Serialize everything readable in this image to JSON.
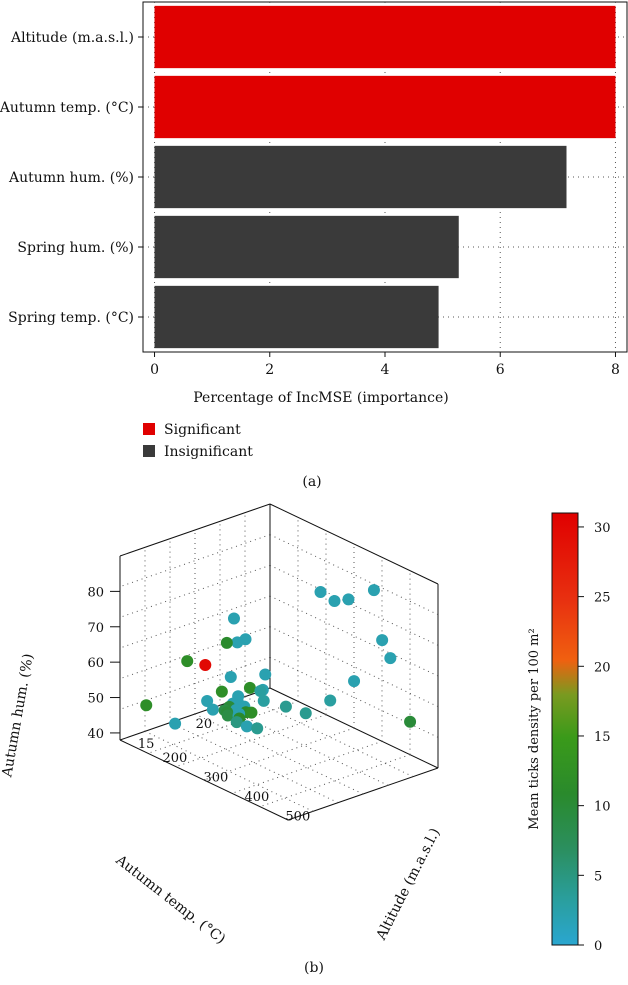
{
  "chart_data": [
    {
      "panel": "a",
      "type": "bar",
      "orientation": "horizontal",
      "categories": [
        "Altitude (m.a.s.l.)",
        "Autumn temp. (°C)",
        "Autumn hum. (%)",
        "Spring hum. (%)",
        "Spring temp. (°C)"
      ],
      "values": [
        8.0,
        8.0,
        7.15,
        5.28,
        4.93
      ],
      "significance": [
        "Significant",
        "Significant",
        "Insignificant",
        "Insignificant",
        "Insignificant"
      ],
      "xlabel": "Percentage of IncMSE (importance)",
      "ylabel": "",
      "xlim": [
        -0.2,
        8.2
      ],
      "xticks": [
        0,
        2,
        4,
        6,
        8
      ],
      "grid": "dotted",
      "legend": [
        {
          "label": "Significant",
          "color": "#e00000"
        },
        {
          "label": "Insignificant",
          "color": "#3a3a3a"
        }
      ],
      "legend_position": "bottom-left",
      "caption": "(a)"
    },
    {
      "panel": "b",
      "type": "scatter3d",
      "axes": {
        "x": {
          "label": "Autumn temp. (°C)",
          "ticks": [
            "15",
            "20"
          ],
          "range": [
            11,
            24
          ]
        },
        "y": {
          "label": "Altitude (m.a.s.l.)",
          "ticks": [
            "200",
            "300",
            "400",
            "500"
          ],
          "range": [
            150,
            560
          ]
        },
        "z": {
          "label": "Autumn hum. (%)",
          "ticks": [
            "40",
            "50",
            "60",
            "70",
            "80"
          ],
          "range": [
            38,
            90
          ]
        }
      },
      "colorbar": {
        "label": "Mean ticks density per 100 m²",
        "ticks": [
          "0",
          "5",
          "10",
          "15",
          "20",
          "25",
          "30"
        ],
        "range": [
          0,
          31
        ]
      },
      "points": [
        {
          "x": 12,
          "y": 400,
          "z": 85,
          "density": 2
        },
        {
          "x": 13,
          "y": 400,
          "z": 78,
          "density": 2
        },
        {
          "x": 13,
          "y": 380,
          "z": 76,
          "density": 2
        },
        {
          "x": 12.8,
          "y": 360,
          "z": 75,
          "density": 11
        },
        {
          "x": 11.5,
          "y": 300,
          "z": 68,
          "density": 12
        },
        {
          "x": 12,
          "y": 330,
          "z": 68,
          "density": 30
        },
        {
          "x": 14,
          "y": 420,
          "z": 68,
          "density": 2
        },
        {
          "x": 13.5,
          "y": 350,
          "z": 64,
          "density": 2
        },
        {
          "x": 14.5,
          "y": 400,
          "z": 62,
          "density": 2
        },
        {
          "x": 15,
          "y": 380,
          "z": 60,
          "density": 3
        },
        {
          "x": 14.8,
          "y": 360,
          "z": 60,
          "density": 12
        },
        {
          "x": 14.5,
          "y": 300,
          "z": 56,
          "density": 12
        },
        {
          "x": 15.2,
          "y": 320,
          "z": 55,
          "density": 2
        },
        {
          "x": 15,
          "y": 250,
          "z": 50,
          "density": 2
        },
        {
          "x": 15.5,
          "y": 290,
          "z": 50,
          "density": 10
        },
        {
          "x": 16,
          "y": 330,
          "z": 50,
          "density": 12
        },
        {
          "x": 16,
          "y": 360,
          "z": 55,
          "density": 3
        },
        {
          "x": 16.5,
          "y": 400,
          "z": 55,
          "density": 4
        },
        {
          "x": 16.8,
          "y": 440,
          "z": 55,
          "density": 4
        },
        {
          "x": 15.5,
          "y": 250,
          "z": 47,
          "density": 2
        },
        {
          "x": 16,
          "y": 300,
          "z": 48,
          "density": 2
        },
        {
          "x": 16.5,
          "y": 330,
          "z": 45,
          "density": 4
        },
        {
          "x": 16.5,
          "y": 280,
          "z": 44,
          "density": 5
        },
        {
          "x": 14,
          "y": 200,
          "z": 42,
          "density": 2
        },
        {
          "x": 11.5,
          "y": 200,
          "z": 50,
          "density": 12
        },
        {
          "x": 17.5,
          "y": 480,
          "z": 60,
          "density": 3
        },
        {
          "x": 18.5,
          "y": 510,
          "z": 66,
          "density": 2
        },
        {
          "x": 19.5,
          "y": 400,
          "z": 84,
          "density": 2
        },
        {
          "x": 20,
          "y": 420,
          "z": 82,
          "density": 2
        },
        {
          "x": 20.5,
          "y": 440,
          "z": 83,
          "density": 2
        },
        {
          "x": 22,
          "y": 460,
          "z": 85,
          "density": 2
        },
        {
          "x": 22,
          "y": 480,
          "z": 72,
          "density": 2
        },
        {
          "x": 22,
          "y": 500,
          "z": 68,
          "density": 2
        },
        {
          "x": 23,
          "y": 520,
          "z": 50,
          "density": 10
        },
        {
          "x": 18,
          "y": 240,
          "z": 46,
          "density": 2
        },
        {
          "x": 18,
          "y": 260,
          "z": 44,
          "density": 11
        },
        {
          "x": 17.5,
          "y": 230,
          "z": 42,
          "density": 9
        },
        {
          "x": 17.8,
          "y": 220,
          "z": 42,
          "density": 10
        },
        {
          "x": 18.5,
          "y": 230,
          "z": 40,
          "density": 11
        },
        {
          "x": 19,
          "y": 200,
          "z": 42,
          "density": 2
        },
        {
          "x": 18.8,
          "y": 240,
          "z": 38,
          "density": 2
        },
        {
          "x": 20,
          "y": 200,
          "z": 40,
          "density": 2
        },
        {
          "x": 19,
          "y": 180,
          "z": 39,
          "density": 9
        },
        {
          "x": 19.5,
          "y": 200,
          "z": 38,
          "density": 2
        },
        {
          "x": 20,
          "y": 180,
          "z": 38,
          "density": 2
        },
        {
          "x": 20.5,
          "y": 170,
          "z": 38,
          "density": 2
        }
      ],
      "caption": "(b)"
    }
  ]
}
